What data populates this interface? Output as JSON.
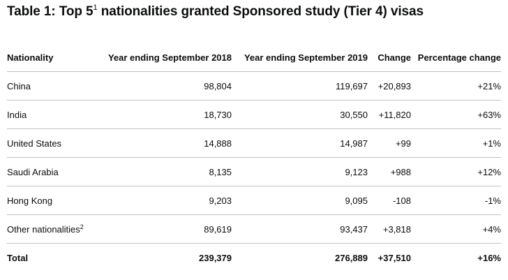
{
  "title": {
    "prefix": "Table 1: Top 5",
    "footnote": "1",
    "suffix": " nationalities granted Sponsored study (Tier 4) visas"
  },
  "table": {
    "headers": [
      "Nationality",
      "Year ending September 2018",
      "Year ending September 2019",
      "Change",
      "Percentage change"
    ],
    "rows": [
      {
        "nationality": "China",
        "footnote": "",
        "y2018": "98,804",
        "y2019": "119,697",
        "change": "+20,893",
        "pct": "+21%"
      },
      {
        "nationality": "India",
        "footnote": "",
        "y2018": "18,730",
        "y2019": "30,550",
        "change": "+11,820",
        "pct": "+63%"
      },
      {
        "nationality": "United States",
        "footnote": "",
        "y2018": "14,888",
        "y2019": "14,987",
        "change": "+99",
        "pct": "+1%"
      },
      {
        "nationality": "Saudi Arabia",
        "footnote": "",
        "y2018": "8,135",
        "y2019": "9,123",
        "change": "+988",
        "pct": "+12%"
      },
      {
        "nationality": "Hong Kong",
        "footnote": "",
        "y2018": "9,203",
        "y2019": "9,095",
        "change": "-108",
        "pct": "-1%"
      },
      {
        "nationality": "Other nationalities",
        "footnote": "2",
        "y2018": "89,619",
        "y2019": "93,437",
        "change": "+3,818",
        "pct": "+4%"
      }
    ],
    "total": {
      "nationality": "Total",
      "y2018": "239,379",
      "y2019": "276,889",
      "change": "+37,510",
      "pct": "+16%"
    }
  }
}
